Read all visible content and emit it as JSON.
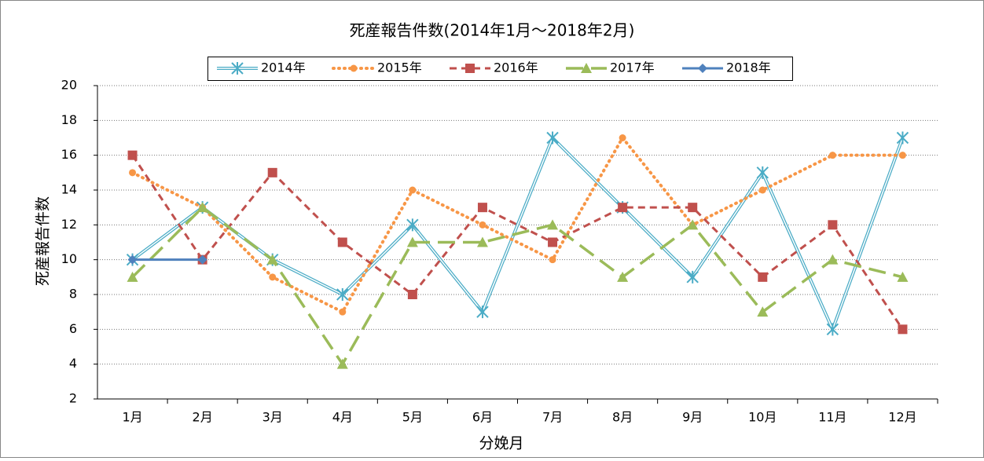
{
  "chart_data": {
    "type": "line",
    "title": "死産報告件数(2014年1月～2018年2月)",
    "x_label": "分娩月",
    "y_label": "死産報告件数",
    "categories": [
      "1月",
      "2月",
      "3月",
      "4月",
      "5月",
      "6月",
      "7月",
      "8月",
      "9月",
      "10月",
      "11月",
      "12月"
    ],
    "series": [
      {
        "name": "2014年",
        "color": "#4bacc6",
        "line": "double",
        "marker": "asterisk",
        "values": [
          10,
          13,
          10,
          8,
          12,
          7,
          17,
          13,
          9,
          15,
          6,
          17
        ]
      },
      {
        "name": "2015年",
        "color": "#f79646",
        "line": "dotted",
        "marker": "circle",
        "values": [
          15,
          13,
          9,
          7,
          14,
          12,
          10,
          17,
          12,
          14,
          16,
          16
        ]
      },
      {
        "name": "2016年",
        "color": "#c0504d",
        "line": "dashed",
        "marker": "square",
        "values": [
          16,
          10,
          15,
          11,
          8,
          13,
          11,
          13,
          13,
          9,
          12,
          6
        ]
      },
      {
        "name": "2017年",
        "color": "#9bbb59",
        "line": "longdash",
        "marker": "triangle",
        "values": [
          9,
          13,
          10,
          4,
          11,
          11,
          12,
          9,
          12,
          7,
          10,
          9
        ]
      },
      {
        "name": "2018年",
        "color": "#4f81bd",
        "line": "solid",
        "marker": "diamond",
        "values": [
          10,
          10,
          null,
          null,
          null,
          null,
          null,
          null,
          null,
          null,
          null,
          null
        ]
      }
    ],
    "ylim": [
      2,
      20
    ],
    "yticks": [
      2,
      4,
      6,
      8,
      10,
      12,
      14,
      16,
      18,
      20
    ],
    "grid": true,
    "legend": "top"
  }
}
